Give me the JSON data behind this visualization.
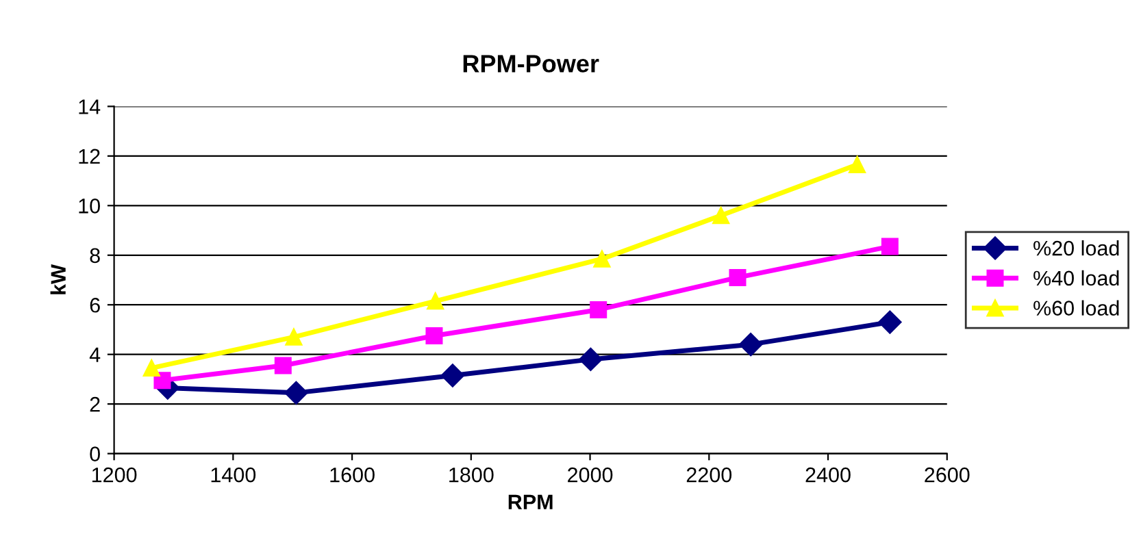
{
  "chart_data": {
    "type": "line",
    "title": "RPM-Power",
    "xlabel": "RPM",
    "ylabel": "kW",
    "xlim": [
      1200,
      2600
    ],
    "xticks": [
      1200,
      1400,
      1600,
      1800,
      2000,
      2200,
      2400,
      2600
    ],
    "ylim": [
      0,
      14
    ],
    "yticks": [
      0,
      2,
      4,
      6,
      8,
      10,
      12,
      14
    ],
    "grid": "y",
    "legend": "right",
    "series": [
      {
        "name": "%20 load",
        "color": "#000080",
        "marker": "diamond",
        "x": [
          1290,
          1506,
          1769,
          2001,
          2270,
          2504
        ],
        "values": [
          2.65,
          2.45,
          3.15,
          3.8,
          4.4,
          5.3
        ]
      },
      {
        "name": "%40 load",
        "color": "#ff00ff",
        "marker": "square",
        "x": [
          1281,
          1484,
          1738,
          2014,
          2248,
          2504
        ],
        "values": [
          2.95,
          3.55,
          4.75,
          5.8,
          7.1,
          8.35
        ]
      },
      {
        "name": "%60 load",
        "color": "#ffff00",
        "marker": "triangle",
        "x": [
          1263,
          1502,
          1740,
          2020,
          2220,
          2449
        ],
        "values": [
          3.45,
          4.7,
          6.15,
          7.85,
          9.6,
          11.65
        ]
      }
    ]
  }
}
